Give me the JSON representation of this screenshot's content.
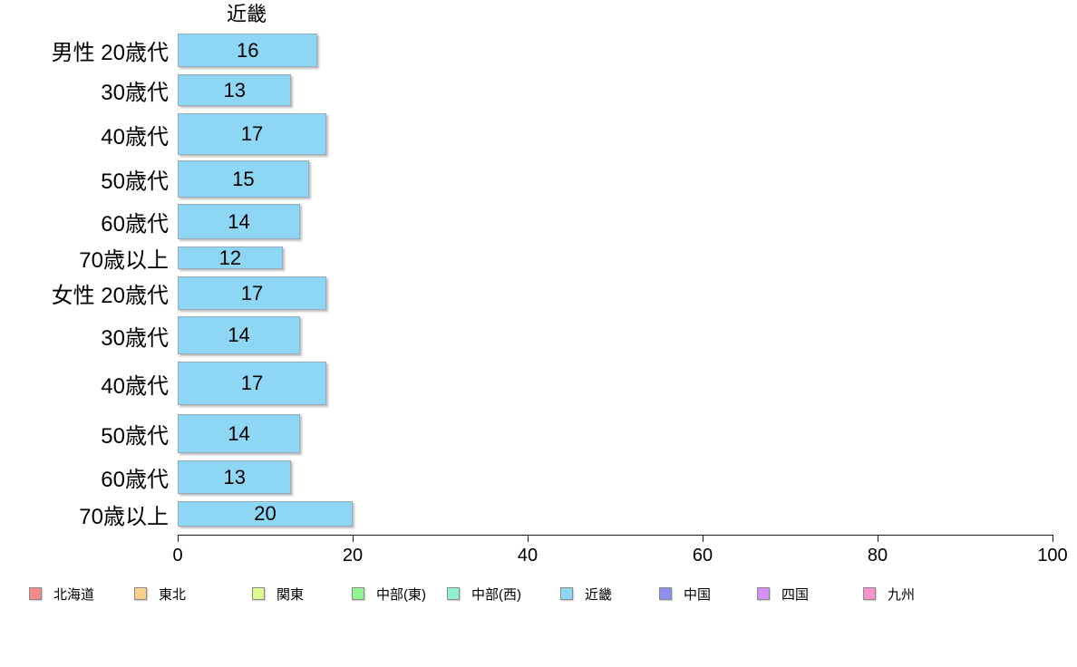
{
  "chart_data": {
    "type": "bar",
    "orientation": "horizontal",
    "title": "近畿",
    "categories": [
      "男性 20歳代",
      "30歳代",
      "40歳代",
      "50歳代",
      "60歳代",
      "70歳以上",
      "女性 20歳代",
      "30歳代",
      "40歳代",
      "50歳代",
      "60歳代",
      "70歳以上"
    ],
    "values": [
      16,
      13,
      17,
      15,
      14,
      12,
      17,
      14,
      17,
      14,
      13,
      20
    ],
    "value_labels": [
      "16",
      "13",
      "17",
      "15",
      "14",
      "12",
      "17",
      "14",
      "17",
      "14",
      "13",
      "20"
    ],
    "xlim": [
      0,
      100
    ],
    "x_ticks": [
      "0",
      "20",
      "40",
      "60",
      "80",
      "100"
    ],
    "x_tick_values": [
      0,
      20,
      40,
      60,
      80,
      100
    ],
    "grid": false,
    "bar_color": "#8DD7F5",
    "bar_border_color": "#96ACBE",
    "legend_position": "bottom",
    "legend": [
      {
        "label": "北海道",
        "color": "#F38B8B"
      },
      {
        "label": "東北",
        "color": "#FACF8C"
      },
      {
        "label": "関東",
        "color": "#DDFB8C"
      },
      {
        "label": "中部(東)",
        "color": "#90F290"
      },
      {
        "label": "中部(西)",
        "color": "#90F2D0"
      },
      {
        "label": "近畿",
        "color": "#8DD7F5"
      },
      {
        "label": "中国",
        "color": "#9090F0"
      },
      {
        "label": "四国",
        "color": "#D490F5"
      },
      {
        "label": "九州",
        "color": "#FA90CC"
      }
    ]
  }
}
